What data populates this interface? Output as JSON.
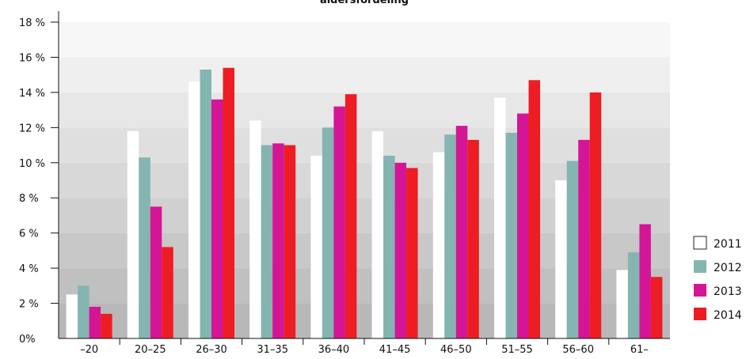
{
  "chart_data": {
    "type": "bar",
    "title": "aldersfordeling",
    "xlabel": "",
    "ylabel": "",
    "categories": [
      "–20",
      "20–25",
      "26–30",
      "31–35",
      "36–40",
      "41–45",
      "46–50",
      "51–55",
      "56–60",
      "61–"
    ],
    "series": [
      {
        "name": "2011",
        "values": [
          2.5,
          11.8,
          14.6,
          12.4,
          10.4,
          11.8,
          10.6,
          13.7,
          9.0,
          3.9
        ]
      },
      {
        "name": "2012",
        "values": [
          3.0,
          10.3,
          15.3,
          11.0,
          12.0,
          10.4,
          11.6,
          11.7,
          10.1,
          4.9
        ]
      },
      {
        "name": "2013",
        "values": [
          1.8,
          7.5,
          13.6,
          11.1,
          13.2,
          10.0,
          12.1,
          12.8,
          11.3,
          6.5
        ]
      },
      {
        "name": "2014",
        "values": [
          1.4,
          5.2,
          15.4,
          11.0,
          13.9,
          9.7,
          11.3,
          14.7,
          14.0,
          3.5
        ]
      }
    ],
    "ylim": [
      0,
      18
    ],
    "yticks": [
      "0%",
      "2 %",
      "4 %",
      "6 %",
      "8 %",
      "10 %",
      "12 %",
      "14 %",
      "16 %",
      "18 %"
    ],
    "legend_position": "right",
    "colors": {
      "series": [
        "#ffffff",
        "#85b5b0",
        "#d41596",
        "#ee1d24"
      ],
      "band_dark": "#b8b8b8",
      "band_light": "#f7f7f7"
    }
  }
}
